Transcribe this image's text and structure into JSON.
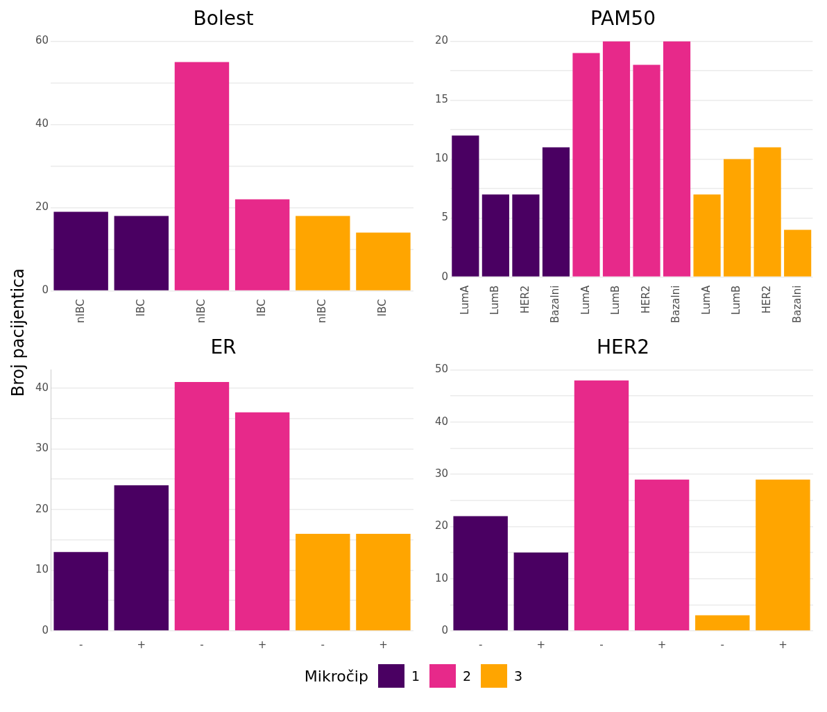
{
  "chart_data": [
    {
      "type": "bar",
      "title": "Bolest",
      "ylabel": "Broj pacijentica",
      "categories": [
        "nIBC",
        "IBC",
        "nIBC",
        "IBC",
        "nIBC",
        "IBC"
      ],
      "ylim": [
        0,
        60
      ],
      "yticks": [
        0,
        {
          "value": 10,
          "label": null
        },
        20,
        {
          "value": 30,
          "label": null
        },
        40,
        {
          "value": 50,
          "label": null
        },
        60
      ],
      "grid": "y",
      "series": [
        {
          "color": "#4a0062",
          "values": [
            19,
            18,
            null,
            null,
            null,
            null
          ]
        },
        {
          "color": "#e7298a",
          "values": [
            null,
            null,
            55,
            22,
            null,
            null
          ]
        },
        {
          "color": "#ffa500",
          "values": [
            null,
            null,
            null,
            null,
            18,
            14
          ]
        }
      ]
    },
    {
      "type": "bar",
      "title": "PAM50",
      "categories": [
        "LumA",
        "LumB",
        "HER2",
        "Bazalni",
        "LumA",
        "LumB",
        "HER2",
        "Bazalni",
        "LumA",
        "LumB",
        "HER2",
        "Bazalni"
      ],
      "ylim": [
        0,
        20
      ],
      "yticks": [
        0,
        {
          "value": 2.5,
          "label": null
        },
        5,
        {
          "value": 7.5,
          "label": null
        },
        10,
        {
          "value": 12.5,
          "label": null
        },
        15,
        {
          "value": 17.5,
          "label": null
        },
        20
      ],
      "grid": "y",
      "series": [
        {
          "color": "#4a0062",
          "values": [
            12,
            7,
            7,
            11,
            null,
            null,
            null,
            null,
            null,
            null,
            null,
            null
          ]
        },
        {
          "color": "#e7298a",
          "values": [
            null,
            null,
            null,
            null,
            19,
            20,
            18,
            20,
            null,
            null,
            null,
            null
          ]
        },
        {
          "color": "#ffa500",
          "values": [
            null,
            null,
            null,
            null,
            null,
            null,
            null,
            null,
            7,
            10,
            11,
            4
          ]
        }
      ]
    },
    {
      "type": "bar",
      "title": "ER",
      "categories": [
        "-",
        "+",
        "-",
        "+",
        "-",
        "+"
      ],
      "ylim": [
        0,
        43
      ],
      "yticks": [
        0,
        {
          "value": 5,
          "label": null
        },
        10,
        {
          "value": 15,
          "label": null
        },
        20,
        {
          "value": 25,
          "label": null
        },
        30,
        {
          "value": 35,
          "label": null
        },
        40
      ],
      "grid": "y",
      "series": [
        {
          "color": "#4a0062",
          "values": [
            13,
            24,
            null,
            null,
            null,
            null
          ]
        },
        {
          "color": "#e7298a",
          "values": [
            null,
            null,
            41,
            36,
            null,
            null
          ]
        },
        {
          "color": "#ffa500",
          "values": [
            null,
            null,
            null,
            null,
            16,
            16
          ]
        }
      ]
    },
    {
      "type": "bar",
      "title": "HER2",
      "categories": [
        "-",
        "+",
        "-",
        "+",
        "-",
        "+"
      ],
      "ylim": [
        0,
        50
      ],
      "yticks": [
        0,
        {
          "value": 5,
          "label": null
        },
        10,
        {
          "value": 15,
          "label": null
        },
        20,
        {
          "value": 25,
          "label": null
        },
        30,
        {
          "value": 35,
          "label": null
        },
        40,
        {
          "value": 45,
          "label": null
        },
        50
      ],
      "grid": "y",
      "legend": "bottom",
      "legend_title": "Mikročip",
      "series": [
        {
          "name": "1",
          "color": "#4a0062",
          "values": [
            22,
            15,
            null,
            null,
            null,
            null
          ]
        },
        {
          "name": "2",
          "color": "#e7298a",
          "values": [
            null,
            null,
            48,
            29,
            null,
            null
          ]
        },
        {
          "name": "3",
          "color": "#ffa500",
          "values": [
            null,
            null,
            null,
            null,
            3,
            29
          ]
        }
      ]
    }
  ]
}
